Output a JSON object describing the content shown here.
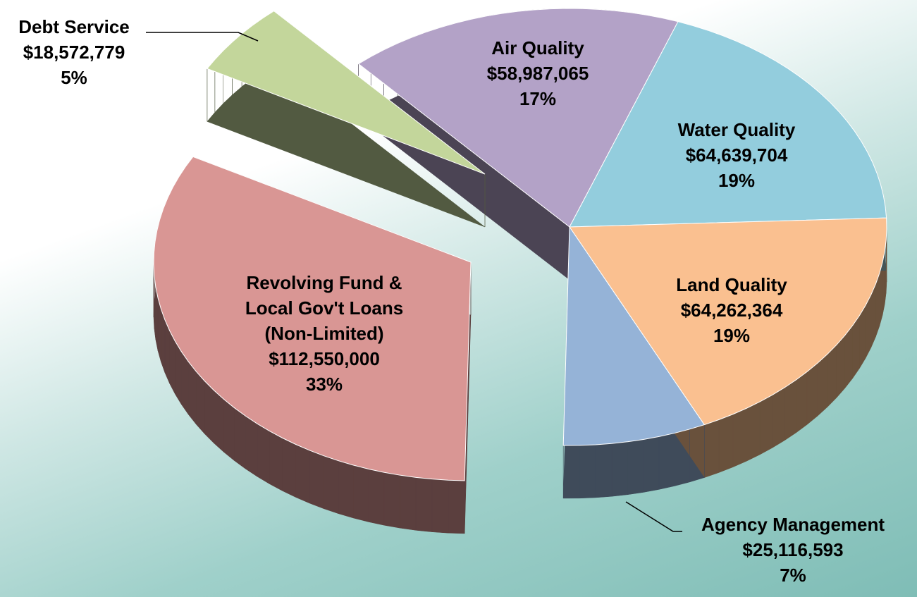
{
  "chart_data": {
    "type": "pie",
    "categories": [
      "Water Quality",
      "Land Quality",
      "Agency Management",
      "Revolving Fund &\nLocal Gov't Loans\n(Non-Limited)",
      "Debt Service",
      "Air Quality"
    ],
    "values": [
      64639704,
      64262364,
      25116593,
      112550000,
      18572779,
      58987065
    ],
    "value_labels": [
      "$64,639,704",
      "$64,262,364",
      "$25,116,593",
      "$112,550,000",
      "$18,572,779",
      "$58,987,065"
    ],
    "percentages": [
      19,
      19,
      7,
      33,
      5,
      17
    ],
    "percentage_labels": [
      "19%",
      "19%",
      "7%",
      "33%",
      "5%",
      "17%"
    ],
    "colors": [
      "#93cddd",
      "#fac090",
      "#95b3d7",
      "#d99694",
      "#c3d69b",
      "#b3a2c7"
    ]
  }
}
